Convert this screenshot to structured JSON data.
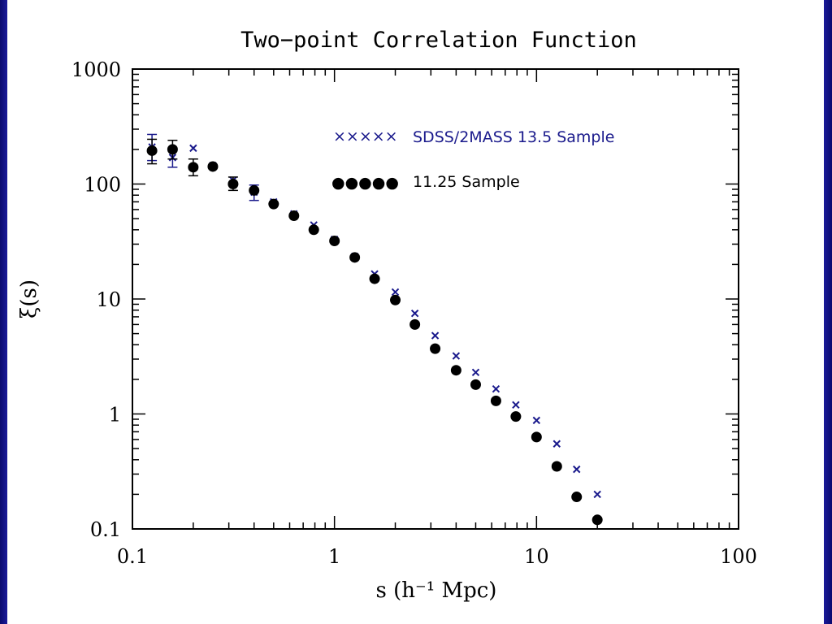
{
  "chart_data": {
    "type": "scatter",
    "title": "Two−point Correlation Function",
    "xlabel": "s (h⁻¹ Mpc)",
    "ylabel": "ξ(s)",
    "xscale": "log",
    "yscale": "log",
    "xlim": [
      0.1,
      100
    ],
    "ylim": [
      0.1,
      1000
    ],
    "xticks": [
      "0.1",
      "1",
      "10",
      "100"
    ],
    "yticks": [
      "0.1",
      "1",
      "10",
      "100",
      "1000"
    ],
    "grid": false,
    "legend_position": "top-right",
    "series": [
      {
        "name": "SDSS/2MASS 13.5 Sample",
        "marker": "cross",
        "color": "#1a1a8c",
        "legend_marker": "×××××",
        "points": [
          {
            "x": 0.125,
            "y": 210,
            "err": [
              160,
              270
            ]
          },
          {
            "x": 0.158,
            "y": 170,
            "err": [
              140,
              205
            ]
          },
          {
            "x": 0.2,
            "y": 205
          },
          {
            "x": 0.25,
            "y": 145
          },
          {
            "x": 0.315,
            "y": 108
          },
          {
            "x": 0.4,
            "y": 85,
            "err": [
              72,
              98
            ]
          },
          {
            "x": 0.5,
            "y": 70
          },
          {
            "x": 0.63,
            "y": 55
          },
          {
            "x": 0.79,
            "y": 44
          },
          {
            "x": 1.0,
            "y": 33
          },
          {
            "x": 1.26,
            "y": 23.5
          },
          {
            "x": 1.58,
            "y": 16.5
          },
          {
            "x": 2.0,
            "y": 11.5
          },
          {
            "x": 2.5,
            "y": 7.5
          },
          {
            "x": 3.15,
            "y": 4.8
          },
          {
            "x": 4.0,
            "y": 3.2
          },
          {
            "x": 5.0,
            "y": 2.3
          },
          {
            "x": 6.3,
            "y": 1.65
          },
          {
            "x": 7.9,
            "y": 1.2
          },
          {
            "x": 10.0,
            "y": 0.88
          },
          {
            "x": 12.6,
            "y": 0.55
          },
          {
            "x": 15.8,
            "y": 0.33
          },
          {
            "x": 20.0,
            "y": 0.2
          }
        ]
      },
      {
        "name": "11.25 Sample",
        "marker": "filled-circle",
        "color": "#000000",
        "legend_marker": "●●●●●",
        "points": [
          {
            "x": 0.125,
            "y": 195,
            "err": [
              150,
              245
            ]
          },
          {
            "x": 0.158,
            "y": 200,
            "err": [
              165,
              240
            ]
          },
          {
            "x": 0.2,
            "y": 140,
            "err": [
              118,
              165
            ]
          },
          {
            "x": 0.25,
            "y": 142
          },
          {
            "x": 0.315,
            "y": 100,
            "err": [
              88,
              115
            ]
          },
          {
            "x": 0.4,
            "y": 88
          },
          {
            "x": 0.5,
            "y": 67
          },
          {
            "x": 0.63,
            "y": 53
          },
          {
            "x": 0.79,
            "y": 40
          },
          {
            "x": 1.0,
            "y": 32
          },
          {
            "x": 1.26,
            "y": 23
          },
          {
            "x": 1.58,
            "y": 15
          },
          {
            "x": 2.0,
            "y": 9.8
          },
          {
            "x": 2.5,
            "y": 6.0
          },
          {
            "x": 3.15,
            "y": 3.7
          },
          {
            "x": 4.0,
            "y": 2.4
          },
          {
            "x": 5.0,
            "y": 1.8
          },
          {
            "x": 6.3,
            "y": 1.3
          },
          {
            "x": 7.9,
            "y": 0.95
          },
          {
            "x": 10.0,
            "y": 0.63
          },
          {
            "x": 12.6,
            "y": 0.35
          },
          {
            "x": 15.8,
            "y": 0.19
          },
          {
            "x": 20.0,
            "y": 0.12
          }
        ]
      }
    ]
  },
  "colors": {
    "frame": "#12128a",
    "series_a": "#1a1a8c",
    "series_b": "#000000"
  }
}
